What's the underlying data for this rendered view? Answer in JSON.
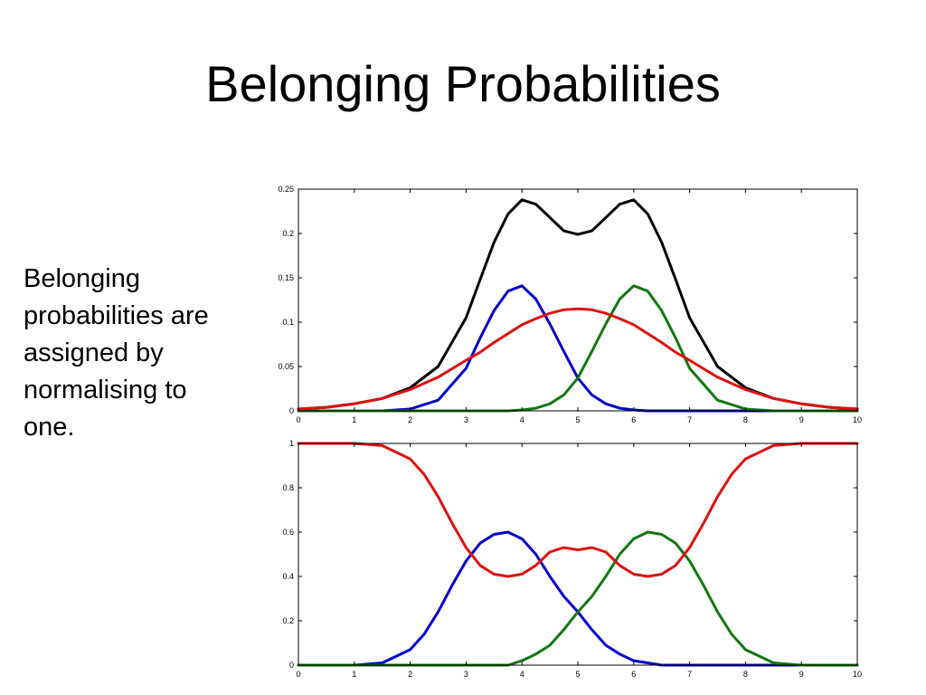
{
  "slide": {
    "title": "Belonging Probabilities",
    "body_lines": [
      "Belonging",
      "probabilities are",
      "assigned by",
      "normalising to",
      "one."
    ]
  },
  "colors": {
    "black": "#000000",
    "blue": "#0000cc",
    "green": "#117711",
    "red": "#dd1111"
  },
  "chart_data": [
    {
      "type": "line",
      "title": "",
      "xlabel": "",
      "ylabel": "",
      "xlim": [
        0,
        10
      ],
      "ylim": [
        0,
        0.25
      ],
      "xticks": [
        "0",
        "1",
        "2",
        "3",
        "4",
        "5",
        "6",
        "7",
        "8",
        "9",
        "10"
      ],
      "yticks": [
        "0",
        "0.05",
        "0.1",
        "0.15",
        "0.2",
        "0.25"
      ],
      "x": [
        0,
        0.5,
        1,
        1.5,
        2,
        2.5,
        3,
        3.25,
        3.5,
        3.75,
        4,
        4.25,
        4.5,
        4.75,
        5,
        5.25,
        5.5,
        5.75,
        6,
        6.25,
        6.5,
        6.75,
        7,
        7.5,
        8,
        8.5,
        9,
        9.5,
        10
      ],
      "series": [
        {
          "color": "blue",
          "values": [
            0,
            0,
            0,
            0,
            0.002,
            0.012,
            0.048,
            0.082,
            0.113,
            0.135,
            0.141,
            0.126,
            0.098,
            0.067,
            0.037,
            0.018,
            0.008,
            0.003,
            0.001,
            0,
            0,
            0,
            0,
            0,
            0,
            0,
            0,
            0,
            0
          ]
        },
        {
          "color": "green",
          "values": [
            0,
            0,
            0,
            0,
            0,
            0,
            0,
            0,
            0,
            0,
            0.001,
            0.003,
            0.008,
            0.018,
            0.037,
            0.067,
            0.098,
            0.126,
            0.141,
            0.135,
            0.113,
            0.082,
            0.048,
            0.012,
            0.002,
            0,
            0,
            0,
            0
          ]
        },
        {
          "color": "red",
          "values": [
            0.002,
            0.004,
            0.008,
            0.014,
            0.024,
            0.038,
            0.057,
            0.066,
            0.077,
            0.087,
            0.097,
            0.104,
            0.11,
            0.114,
            0.115,
            0.114,
            0.11,
            0.104,
            0.097,
            0.087,
            0.077,
            0.066,
            0.057,
            0.038,
            0.024,
            0.014,
            0.008,
            0.004,
            0.002
          ]
        },
        {
          "color": "black",
          "values": [
            0.002,
            0.004,
            0.008,
            0.014,
            0.026,
            0.05,
            0.105,
            0.148,
            0.19,
            0.222,
            0.238,
            0.233,
            0.218,
            0.203,
            0.199,
            0.203,
            0.218,
            0.233,
            0.238,
            0.222,
            0.19,
            0.148,
            0.105,
            0.05,
            0.026,
            0.014,
            0.008,
            0.004,
            0.002
          ]
        }
      ]
    },
    {
      "type": "line",
      "title": "",
      "xlabel": "",
      "ylabel": "",
      "xlim": [
        0,
        10
      ],
      "ylim": [
        0,
        1
      ],
      "xticks": [
        "0",
        "1",
        "2",
        "3",
        "4",
        "5",
        "6",
        "7",
        "8",
        "9",
        "10"
      ],
      "yticks": [
        "0",
        "0.2",
        "0.4",
        "0.6",
        "0.8",
        "1"
      ],
      "x": [
        0,
        0.5,
        1,
        1.5,
        2,
        2.25,
        2.5,
        2.75,
        3,
        3.25,
        3.5,
        3.75,
        4,
        4.25,
        4.5,
        4.75,
        5,
        5.25,
        5.5,
        5.75,
        6,
        6.25,
        6.5,
        6.75,
        7,
        7.25,
        7.5,
        7.75,
        8,
        8.5,
        9,
        9.5,
        10
      ],
      "series": [
        {
          "color": "blue",
          "values": [
            0,
            0,
            0,
            0.01,
            0.07,
            0.14,
            0.24,
            0.36,
            0.47,
            0.55,
            0.59,
            0.6,
            0.57,
            0.5,
            0.4,
            0.31,
            0.24,
            0.16,
            0.09,
            0.05,
            0.02,
            0.01,
            0,
            0,
            0,
            0,
            0,
            0,
            0,
            0,
            0,
            0,
            0
          ]
        },
        {
          "color": "green",
          "values": [
            0,
            0,
            0,
            0,
            0,
            0,
            0,
            0,
            0,
            0,
            0,
            0,
            0.02,
            0.05,
            0.09,
            0.16,
            0.24,
            0.31,
            0.4,
            0.5,
            0.57,
            0.6,
            0.59,
            0.55,
            0.47,
            0.36,
            0.24,
            0.14,
            0.07,
            0.01,
            0,
            0,
            0
          ]
        },
        {
          "color": "red",
          "values": [
            1,
            1,
            1,
            0.99,
            0.93,
            0.86,
            0.76,
            0.64,
            0.53,
            0.45,
            0.41,
            0.4,
            0.41,
            0.45,
            0.51,
            0.53,
            0.52,
            0.53,
            0.51,
            0.45,
            0.41,
            0.4,
            0.41,
            0.45,
            0.53,
            0.64,
            0.76,
            0.86,
            0.93,
            0.99,
            1,
            1,
            1
          ]
        }
      ]
    }
  ]
}
